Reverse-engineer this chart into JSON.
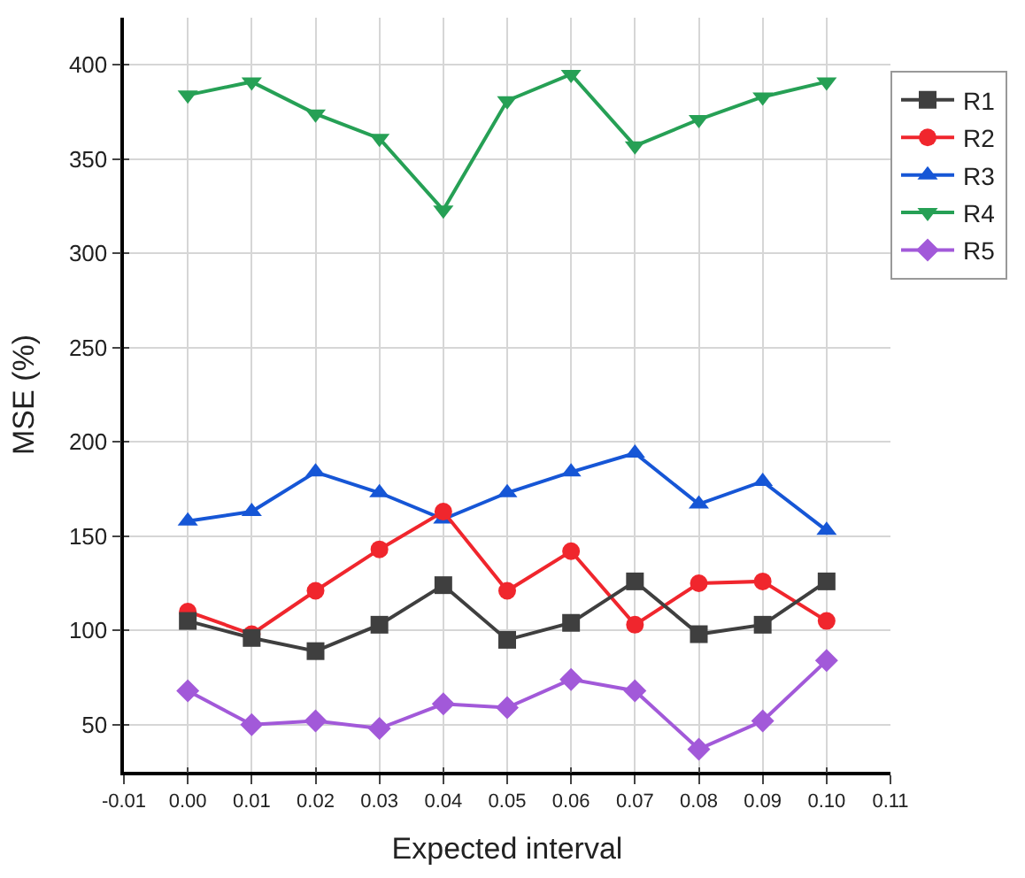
{
  "chart_data": {
    "type": "line",
    "xlabel": "Expected interval",
    "ylabel": "MSE (%)",
    "x": [
      0.0,
      0.01,
      0.02,
      0.03,
      0.04,
      0.05,
      0.06,
      0.07,
      0.08,
      0.09,
      0.1
    ],
    "xlim": [
      -0.01,
      0.11
    ],
    "xticks": [
      {
        "value": -0.01,
        "label": "-0.01"
      },
      {
        "value": 0.0,
        "label": "0.00"
      },
      {
        "value": 0.01,
        "label": "0.01"
      },
      {
        "value": 0.02,
        "label": "0.02"
      },
      {
        "value": 0.03,
        "label": "0.03"
      },
      {
        "value": 0.04,
        "label": "0.04"
      },
      {
        "value": 0.05,
        "label": "0.05"
      },
      {
        "value": 0.06,
        "label": "0.06"
      },
      {
        "value": 0.07,
        "label": "0.07"
      },
      {
        "value": 0.08,
        "label": "0.08"
      },
      {
        "value": 0.09,
        "label": "0.09"
      },
      {
        "value": 0.1,
        "label": "0.10"
      },
      {
        "value": 0.11,
        "label": "0.11"
      }
    ],
    "ylim": [
      25,
      425
    ],
    "yticks": [
      50,
      100,
      150,
      200,
      250,
      300,
      350,
      400
    ],
    "grid": true,
    "legend": "top right",
    "series": [
      {
        "name": "R1",
        "color": "#3f3f3f",
        "marker": "square",
        "values": [
          105,
          96,
          89,
          103,
          124,
          95,
          104,
          126,
          98,
          103,
          126
        ]
      },
      {
        "name": "R2",
        "color": "#f0262d",
        "marker": "circle",
        "values": [
          110,
          98,
          121,
          143,
          163,
          121,
          142,
          103,
          125,
          126,
          105
        ]
      },
      {
        "name": "R3",
        "color": "#1656d6",
        "marker": "triangle",
        "values": [
          158,
          163,
          184,
          173,
          159,
          173,
          184,
          194,
          167,
          179,
          153
        ]
      },
      {
        "name": "R4",
        "color": "#26a055",
        "marker": "triangle-down",
        "values": [
          384,
          391,
          374,
          361,
          323,
          381,
          395,
          357,
          371,
          383,
          391
        ]
      },
      {
        "name": "R5",
        "color": "#a259d9",
        "marker": "diamond",
        "values": [
          68,
          50,
          52,
          48,
          61,
          59,
          74,
          68,
          37,
          52,
          84
        ]
      }
    ]
  }
}
